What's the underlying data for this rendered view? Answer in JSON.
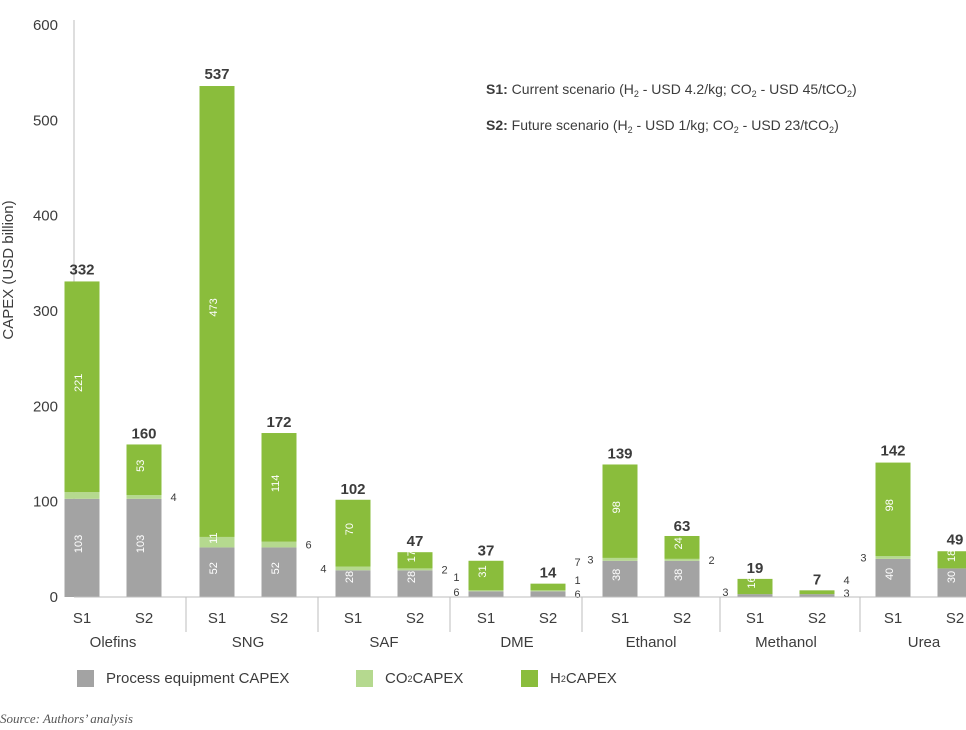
{
  "colors": {
    "process": "#a3a3a3",
    "co2": "#b5d98f",
    "h2": "#8abd3c",
    "text": "#3c3c3c",
    "axis": "#bdbdbd"
  },
  "notes": {
    "s1": {
      "key": "S1:",
      "pre": " Current scenario (H",
      "sub1": "2",
      "mid": " - USD 4.2/kg; CO",
      "sub2": "2",
      "mid2": " - USD 45/tCO",
      "sub3": "2",
      "post": ")"
    },
    "s2": {
      "key": "S2:",
      "pre": " Future scenario (H",
      "sub1": "2",
      "mid": " - USD 1/kg; CO",
      "sub2": "2",
      "mid2": " - USD 23/tCO",
      "sub3": "2",
      "post": ")"
    }
  },
  "legend": {
    "process": {
      "label": "Process equipment CAPEX"
    },
    "co2": {
      "pre": "CO",
      "sub": "2",
      "post": " CAPEX"
    },
    "h2": {
      "pre": "H",
      "sub": "2",
      "post": " CAPEX"
    }
  },
  "source": "Source: Authors’ analysis",
  "chart_data": {
    "type": "bar",
    "stacked": true,
    "ylabel": "CAPEX (USD billion)",
    "ylim": [
      0,
      600
    ],
    "yticks": [
      0,
      100,
      200,
      300,
      400,
      500,
      600
    ],
    "grid": false,
    "legend_position": "bottom",
    "series": [
      {
        "key": "process",
        "name": "Process equipment CAPEX"
      },
      {
        "key": "co2",
        "name": "CO2 CAPEX"
      },
      {
        "key": "h2",
        "name": "H2 CAPEX"
      }
    ],
    "groups": [
      {
        "name": "Olefins",
        "bars": [
          {
            "label": "S1",
            "process": 103,
            "co2": 7,
            "h2": 221,
            "total": 332
          },
          {
            "label": "S2",
            "process": 103,
            "co2": 4,
            "h2": 53,
            "total": 160
          }
        ]
      },
      {
        "name": "SNG",
        "bars": [
          {
            "label": "S1",
            "process": 52,
            "co2": 11,
            "h2": 473,
            "total": 537
          },
          {
            "label": "S2",
            "process": 52,
            "co2": 6,
            "h2": 114,
            "total": 172
          }
        ]
      },
      {
        "name": "SAF",
        "bars": [
          {
            "label": "S1",
            "process": 28,
            "co2": 4,
            "h2": 70,
            "total": 102
          },
          {
            "label": "S2",
            "process": 28,
            "co2": 2,
            "h2": 17,
            "total": 47
          }
        ]
      },
      {
        "name": "DME",
        "bars": [
          {
            "label": "S1",
            "process": 6,
            "co2": 1,
            "h2": 31,
            "total": 37
          },
          {
            "label": "S2",
            "process": 6,
            "co2": 1,
            "h2": 7,
            "total": 14
          }
        ]
      },
      {
        "name": "Ethanol",
        "bars": [
          {
            "label": "S1",
            "process": 38,
            "co2": 3,
            "h2": 98,
            "total": 139
          },
          {
            "label": "S2",
            "process": 38,
            "co2": 2,
            "h2": 24,
            "total": 63
          }
        ]
      },
      {
        "name": "Methanol",
        "bars": [
          {
            "label": "S1",
            "process": 3,
            "co2": 0,
            "h2": 16,
            "total": 19
          },
          {
            "label": "S2",
            "process": 3,
            "co2": 0,
            "h2": 4,
            "total": 7
          }
        ]
      },
      {
        "name": "Urea",
        "bars": [
          {
            "label": "S1",
            "process": 40,
            "co2": 3,
            "h2": 98,
            "total": 142
          },
          {
            "label": "S2",
            "process": 30,
            "co2": 0,
            "h2": 18,
            "total": 49
          }
        ]
      }
    ]
  }
}
